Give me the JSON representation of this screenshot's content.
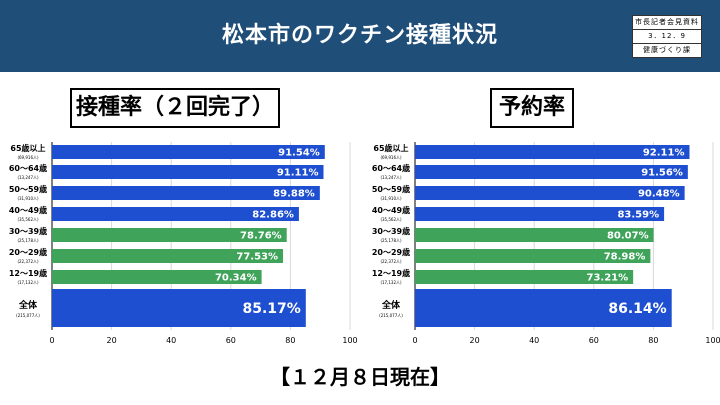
{
  "header": {
    "title": "松本市のワクチン接種状況",
    "press_label_1": "市長記者会見資料",
    "press_label_2": "3．12．9",
    "press_label_3": "健康づくり課"
  },
  "footer": {
    "date": "【１２月８日現在】"
  },
  "colors": {
    "header_bg": "#1f4e79",
    "blue_bar": "#1f4fd1",
    "green_bar": "#3fa45a",
    "grid": "#d9d9d9"
  },
  "chart_data": [
    {
      "type": "bar",
      "orientation": "horizontal",
      "title": "接種率（２回完了）",
      "xlim": [
        0,
        100
      ],
      "xticks": [
        0,
        20,
        40,
        60,
        80,
        100
      ],
      "grid": true,
      "categories": [
        {
          "label": "65歳以上",
          "sub": "(69,916人)"
        },
        {
          "label": "60～64歳",
          "sub": "(13,247人)"
        },
        {
          "label": "50～59歳",
          "sub": "(31,910人)"
        },
        {
          "label": "40～49歳",
          "sub": "(35,562人)"
        },
        {
          "label": "30～39歳",
          "sub": "(25,178人)"
        },
        {
          "label": "20～29歳",
          "sub": "(22,372人)"
        },
        {
          "label": "12～19歳",
          "sub": "(17,132人)"
        },
        {
          "label": "全体",
          "sub": "(215,077人)"
        }
      ],
      "values": [
        91.54,
        91.11,
        89.88,
        82.86,
        78.76,
        77.53,
        70.34,
        85.17
      ],
      "value_labels": [
        "91.54%",
        "91.11%",
        "89.88%",
        "82.86%",
        "78.76%",
        "77.53%",
        "70.34%",
        "85.17%"
      ],
      "bar_colors": [
        "#1f4fd1",
        "#1f4fd1",
        "#1f4fd1",
        "#1f4fd1",
        "#3fa45a",
        "#3fa45a",
        "#3fa45a",
        "#1f4fd1"
      ]
    },
    {
      "type": "bar",
      "orientation": "horizontal",
      "title": "予約率",
      "xlim": [
        0,
        100
      ],
      "xticks": [
        0,
        20,
        40,
        60,
        80,
        100
      ],
      "grid": true,
      "categories": [
        {
          "label": "65歳以上",
          "sub": "(69,916人)"
        },
        {
          "label": "60～64歳",
          "sub": "(13,247人)"
        },
        {
          "label": "50～59歳",
          "sub": "(31,910人)"
        },
        {
          "label": "40～49歳",
          "sub": "(35,562人)"
        },
        {
          "label": "30～39歳",
          "sub": "(25,178人)"
        },
        {
          "label": "20～29歳",
          "sub": "(22,372人)"
        },
        {
          "label": "12～19歳",
          "sub": "(17,132人)"
        },
        {
          "label": "全体",
          "sub": "(215,077人)"
        }
      ],
      "values": [
        92.11,
        91.56,
        90.48,
        83.59,
        80.07,
        78.98,
        73.21,
        86.14
      ],
      "value_labels": [
        "92.11%",
        "91.56%",
        "90.48%",
        "83.59%",
        "80.07%",
        "78.98%",
        "73.21%",
        "86.14%"
      ],
      "bar_colors": [
        "#1f4fd1",
        "#1f4fd1",
        "#1f4fd1",
        "#1f4fd1",
        "#3fa45a",
        "#3fa45a",
        "#3fa45a",
        "#1f4fd1"
      ]
    }
  ]
}
